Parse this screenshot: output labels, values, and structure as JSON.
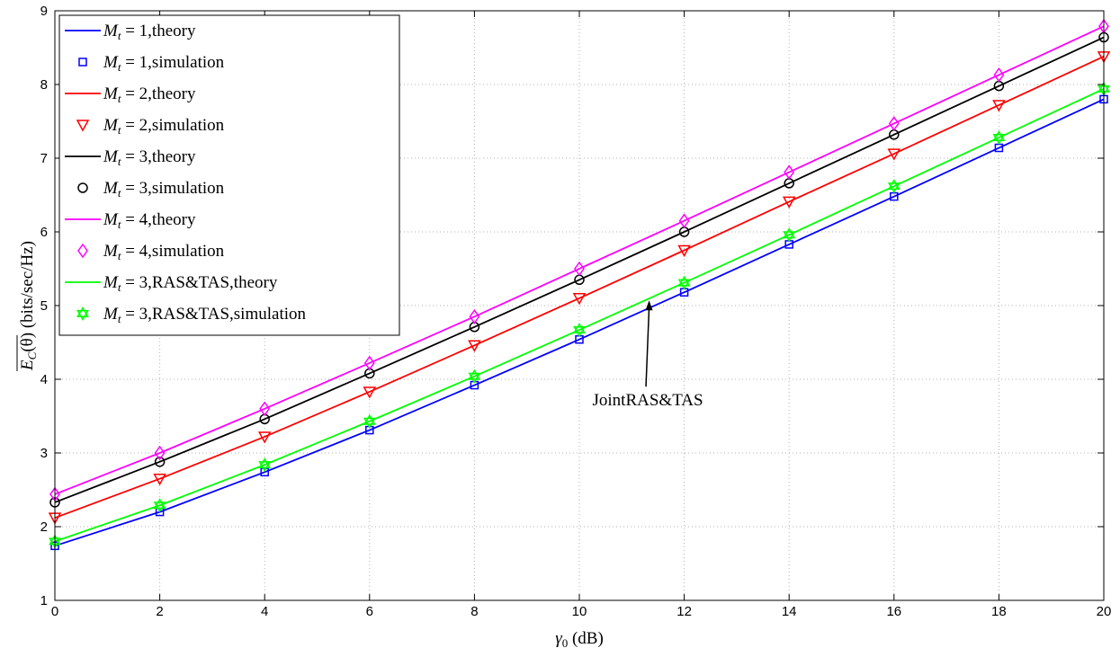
{
  "chart_data": {
    "type": "line",
    "xlabel": "γ0 (dB)",
    "xlabel_parts": {
      "symbol": "γ",
      "subscript": "0",
      "unit": " (dB)"
    },
    "ylabel": "E_C(θ) (bits/sec/Hz)",
    "ylabel_parts": {
      "symbol": "E",
      "subscript": "C",
      "arg": "(θ)",
      "unit": "  (bits/sec/Hz)"
    },
    "xlim": [
      0,
      20
    ],
    "ylim": [
      1,
      9
    ],
    "xticks": [
      0,
      2,
      4,
      6,
      8,
      10,
      12,
      14,
      16,
      18,
      20
    ],
    "yticks": [
      1,
      2,
      3,
      4,
      5,
      6,
      7,
      8,
      9
    ],
    "grid": true,
    "legend_position": "top-left",
    "x": [
      0,
      2,
      4,
      6,
      8,
      10,
      12,
      14,
      16,
      18,
      20
    ],
    "series": [
      {
        "name": "Mt = 1,theory",
        "label_text": ",theory",
        "mt": "1",
        "kind": "line",
        "color": "#0000ff",
        "values": [
          1.74,
          2.2,
          2.74,
          3.31,
          3.92,
          4.54,
          5.18,
          5.83,
          6.48,
          7.14,
          7.8
        ]
      },
      {
        "name": "Mt = 1,simulation",
        "label_text": ",simulation",
        "mt": "1",
        "kind": "marker",
        "marker": "square",
        "color": "#0000ff",
        "values": [
          1.74,
          2.2,
          2.74,
          3.31,
          3.92,
          4.54,
          5.18,
          5.83,
          6.48,
          7.14,
          7.8
        ]
      },
      {
        "name": "Mt = 2,theory",
        "label_text": ",theory",
        "mt": "2",
        "kind": "line",
        "color": "#ff0000",
        "values": [
          2.12,
          2.65,
          3.22,
          3.83,
          4.46,
          5.1,
          5.75,
          6.41,
          7.06,
          7.72,
          8.38
        ]
      },
      {
        "name": "Mt = 2,simulation",
        "label_text": ",simulation",
        "mt": "2",
        "kind": "marker",
        "marker": "triangle-down",
        "color": "#ff0000",
        "values": [
          2.12,
          2.65,
          3.22,
          3.83,
          4.46,
          5.1,
          5.75,
          6.41,
          7.06,
          7.72,
          8.38
        ]
      },
      {
        "name": "Mt = 3,theory",
        "label_text": ",theory",
        "mt": "3",
        "kind": "line",
        "color": "#000000",
        "values": [
          2.33,
          2.88,
          3.46,
          4.08,
          4.71,
          5.35,
          6.0,
          6.66,
          7.32,
          7.98,
          8.64
        ]
      },
      {
        "name": "Mt = 3,simulation",
        "label_text": ",simulation",
        "mt": "3",
        "kind": "marker",
        "marker": "circle",
        "color": "#000000",
        "values": [
          2.33,
          2.88,
          3.46,
          4.08,
          4.71,
          5.35,
          6.0,
          6.66,
          7.32,
          7.98,
          8.64
        ]
      },
      {
        "name": "Mt = 4,theory",
        "label_text": ",theory",
        "mt": "4",
        "kind": "line",
        "color": "#ff00ff",
        "values": [
          2.44,
          3.0,
          3.6,
          4.22,
          4.85,
          5.5,
          6.15,
          6.81,
          7.47,
          8.13,
          8.79
        ]
      },
      {
        "name": "Mt = 4,simulation",
        "label_text": ",simulation",
        "mt": "4",
        "kind": "marker",
        "marker": "diamond",
        "color": "#ff00ff",
        "values": [
          2.44,
          3.0,
          3.6,
          4.22,
          4.85,
          5.5,
          6.15,
          6.81,
          7.47,
          8.13,
          8.79
        ]
      },
      {
        "name": "Mt = 3,RAS&TAS,theory",
        "label_text": ",RAS&TAS,theory",
        "mt": "3",
        "kind": "line",
        "color": "#00ff00",
        "values": [
          1.8,
          2.29,
          2.84,
          3.43,
          4.04,
          4.67,
          5.31,
          5.96,
          6.62,
          7.28,
          7.94
        ]
      },
      {
        "name": "Mt = 3,RAS&TAS,simulation",
        "label_text": ",RAS&TAS,simulation",
        "mt": "3",
        "kind": "marker",
        "marker": "hexagram",
        "color": "#00ff00",
        "values": [
          1.8,
          2.29,
          2.84,
          3.43,
          4.04,
          4.67,
          5.31,
          5.96,
          6.62,
          7.28,
          7.94
        ]
      }
    ],
    "annotations": [
      {
        "text": "JointRAS&TAS",
        "arrow_from": [
          11.27,
          3.9
        ],
        "arrow_to": [
          11.33,
          5.07
        ]
      }
    ]
  }
}
